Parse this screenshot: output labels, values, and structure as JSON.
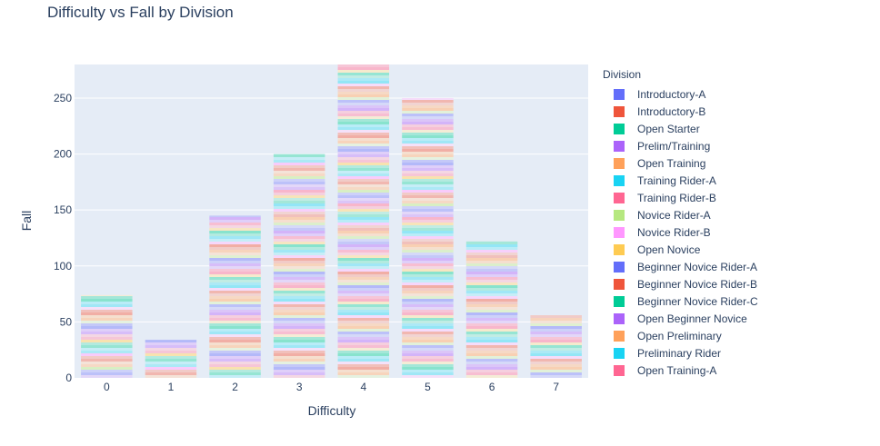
{
  "chart_data": {
    "type": "bar",
    "title": "Difficulty vs Fall by Division",
    "xlabel": "Difficulty",
    "ylabel": "Fall",
    "ylim": [
      0,
      280
    ],
    "yticks": [
      0,
      50,
      100,
      150,
      200,
      250
    ],
    "categories": [
      "0",
      "1",
      "2",
      "3",
      "4",
      "5",
      "6",
      "7"
    ],
    "totals": [
      74,
      34,
      145,
      200,
      280,
      250,
      122,
      56
    ],
    "barmode": "stack",
    "grid": true,
    "legend": {
      "title": "Division",
      "placement": "right"
    },
    "series": [
      {
        "name": "Introductory-A",
        "color": "#636efa"
      },
      {
        "name": "Introductory-B",
        "color": "#EF553B"
      },
      {
        "name": "Open Starter",
        "color": "#00cc96"
      },
      {
        "name": "Prelim/Training",
        "color": "#ab63fa"
      },
      {
        "name": "Open Training",
        "color": "#FFA15A"
      },
      {
        "name": "Training Rider-A",
        "color": "#19d3f3"
      },
      {
        "name": "Training Rider-B",
        "color": "#FF6692"
      },
      {
        "name": "Novice Rider-A",
        "color": "#B6E880"
      },
      {
        "name": "Novice Rider-B",
        "color": "#FF97FF"
      },
      {
        "name": "Open Novice",
        "color": "#FECB52"
      },
      {
        "name": "Beginner Novice Rider-A",
        "color": "#636efa"
      },
      {
        "name": "Beginner Novice Rider-B",
        "color": "#EF553B"
      },
      {
        "name": "Beginner Novice Rider-C",
        "color": "#00cc96"
      },
      {
        "name": "Open Beginner Novice",
        "color": "#ab63fa"
      },
      {
        "name": "Open Preliminary",
        "color": "#FFA15A"
      },
      {
        "name": "Preliminary Rider",
        "color": "#19d3f3"
      },
      {
        "name": "Open Training-A",
        "color": "#FF6692"
      }
    ]
  }
}
